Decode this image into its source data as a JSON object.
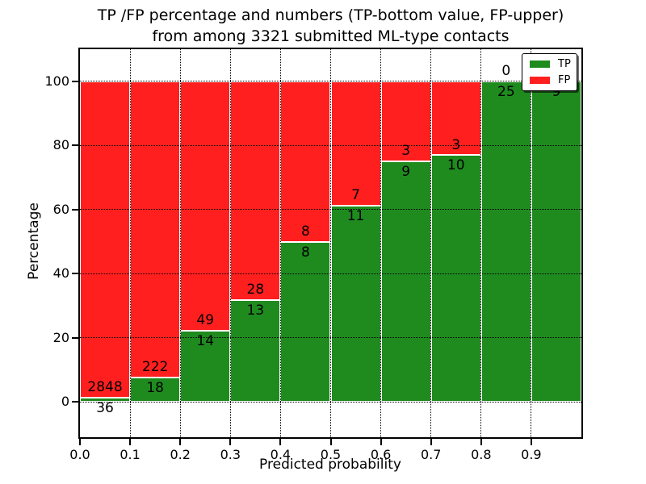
{
  "title": {
    "line1": "TP /FP percentage and numbers (TP-bottom value, FP-upper)",
    "line2": "from among 3321 submitted ML-type contacts"
  },
  "axes": {
    "xlabel": "Predicted probability",
    "ylabel": "Percentage",
    "xtick_labels": [
      "0.0",
      "0.1",
      "0.2",
      "0.3",
      "0.4",
      "0.5",
      "0.6",
      "0.7",
      "0.8",
      "0.9"
    ],
    "ytick_labels": [
      "0",
      "20",
      "40",
      "60",
      "80",
      "100"
    ]
  },
  "legend": {
    "items": [
      {
        "label": "TP",
        "color": "#1f8b1f"
      },
      {
        "label": "FP",
        "color": "#ff1f1f"
      }
    ]
  },
  "colors": {
    "tp_green": "#1f8b1f",
    "fp_red": "#ff1f1f",
    "bar_edge": "#ffffff",
    "grid": "#000000",
    "background": "#ffffff"
  },
  "chart_data": {
    "type": "bar",
    "stacked": true,
    "orientation": "vertical",
    "title": "TP /FP percentage and numbers (TP-bottom value, FP-upper) from among 3321 submitted ML-type contacts",
    "xlabel": "Predicted probability",
    "ylabel": "Percentage",
    "total_submitted_contacts": 3321,
    "x_bin_edges": [
      0.0,
      0.1,
      0.2,
      0.3,
      0.4,
      0.5,
      0.6,
      0.7,
      0.8,
      0.9,
      1.0
    ],
    "series": [
      {
        "name": "TP",
        "color": "#1f8b1f",
        "values": [
          36,
          18,
          14,
          13,
          8,
          11,
          9,
          10,
          25,
          9
        ]
      },
      {
        "name": "FP",
        "color": "#ff1f1f",
        "values": [
          2848,
          222,
          49,
          28,
          8,
          7,
          3,
          3,
          0,
          0
        ]
      }
    ],
    "bar_height_unit": "percent share of bin total (TP% + FP% = 100)",
    "tp_percent_by_bin": [
      1.2,
      7.5,
      22.2,
      31.7,
      50.0,
      61.1,
      75.0,
      76.9,
      100.0,
      100.0
    ],
    "annotations": "TP count printed below green/red boundary, FP count printed above it",
    "xticks": [
      0.0,
      0.1,
      0.2,
      0.3,
      0.4,
      0.5,
      0.6,
      0.7,
      0.8,
      0.9
    ],
    "yticks": [
      0,
      20,
      40,
      60,
      80,
      100
    ],
    "xlim": [
      0,
      1
    ],
    "ylim": [
      -11,
      110
    ],
    "grid": "dotted, both axes",
    "legend_position": "upper right"
  }
}
